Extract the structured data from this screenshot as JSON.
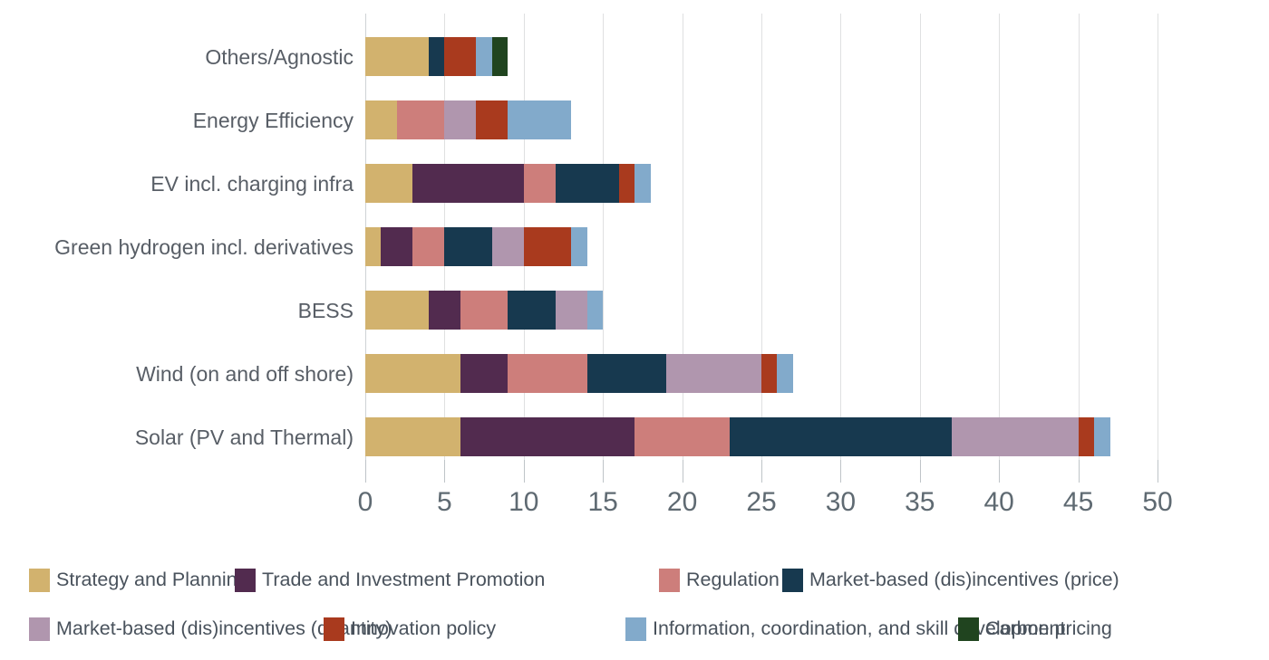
{
  "chart_data": {
    "type": "bar",
    "orientation": "horizontal",
    "stacked": true,
    "title": "",
    "xlabel": "",
    "ylabel": "",
    "xlim": [
      0,
      50
    ],
    "x_ticks": [
      0,
      5,
      10,
      15,
      20,
      25,
      30,
      35,
      40,
      45,
      50
    ],
    "grid": true,
    "legend_position": "bottom",
    "categories": [
      "Others/Agnostic",
      "Energy Efficiency",
      "EV incl. charging infra",
      "Green hydrogen incl. derivatives",
      "BESS",
      "Wind (on and off shore)",
      "Solar (PV and Thermal)"
    ],
    "series": [
      {
        "name": "Strategy and Planning",
        "color": "#d2b26e",
        "values": [
          4,
          2,
          3,
          1,
          4,
          6,
          6
        ]
      },
      {
        "name": "Trade and Investment Promotion",
        "color": "#522b4f",
        "values": [
          0,
          0,
          7,
          2,
          2,
          3,
          11
        ]
      },
      {
        "name": "Regulation",
        "color": "#cd7e7b",
        "values": [
          0,
          3,
          2,
          2,
          3,
          5,
          6
        ]
      },
      {
        "name": "Market-based (dis)incentives (price)",
        "color": "#17394f",
        "values": [
          1,
          0,
          4,
          3,
          3,
          5,
          14
        ]
      },
      {
        "name": "Market-based (dis)incentives (quantity)",
        "color": "#b096ae",
        "values": [
          0,
          2,
          0,
          2,
          2,
          6,
          8
        ]
      },
      {
        "name": "Innovation policy",
        "color": "#a93a1e",
        "values": [
          2,
          2,
          1,
          3,
          0,
          1,
          1
        ]
      },
      {
        "name": "Information, coordination, and skill development",
        "color": "#82aacb",
        "values": [
          1,
          4,
          1,
          1,
          1,
          1,
          1
        ]
      },
      {
        "name": "Carbon pricing",
        "color": "#20441f",
        "values": [
          1,
          0,
          0,
          0,
          0,
          0,
          0
        ]
      }
    ],
    "category_totals": [
      9,
      13,
      18,
      14,
      15,
      27,
      47
    ]
  },
  "axis": {
    "grid_color": "#dfe0e1",
    "tick_color": "#bfc4c8",
    "tick_label_color": "#5f6a72",
    "category_label_color": "#585e66"
  },
  "legend": {
    "text_color": "#49525c"
  }
}
